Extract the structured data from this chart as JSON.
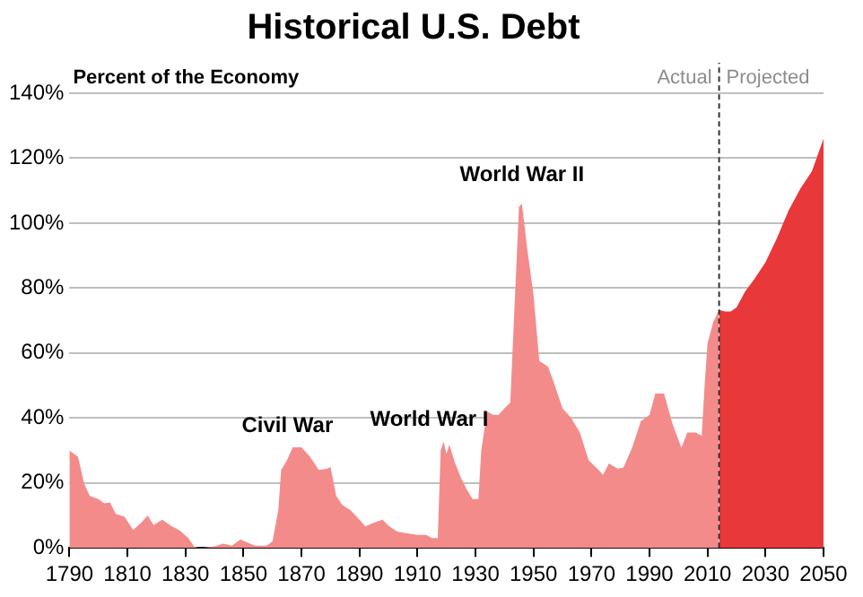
{
  "chart_data": {
    "type": "area",
    "title": "Historical U.S. Debt",
    "ylabel": "Percent of the Economy",
    "xlim": [
      1790,
      2050
    ],
    "xticks": [
      1790,
      1810,
      1830,
      1850,
      1870,
      1890,
      1910,
      1930,
      1950,
      1970,
      1990,
      2010,
      2030,
      2050
    ],
    "ylim": [
      0,
      140
    ],
    "yticks": [
      {
        "value": 0,
        "label": "0%"
      },
      {
        "value": 20,
        "label": "20%"
      },
      {
        "value": 40,
        "label": "40%"
      },
      {
        "value": 60,
        "label": "60%"
      },
      {
        "value": 80,
        "label": "80%"
      },
      {
        "value": 100,
        "label": "100%"
      },
      {
        "value": 120,
        "label": "120%"
      },
      {
        "value": 140,
        "label": "140%"
      }
    ],
    "grid": "y",
    "legend": false,
    "series": [
      {
        "color": "#f48b8b",
        "x": [
          1790,
          1793,
          1795,
          1797,
          1800,
          1802,
          1804,
          1806,
          1809,
          1812,
          1815,
          1817,
          1819,
          1822,
          1825,
          1828,
          1831,
          1833,
          1835,
          1840,
          1843,
          1846,
          1849,
          1851,
          1854,
          1858,
          1860,
          1862,
          1863,
          1865,
          1867,
          1870,
          1873,
          1876,
          1879,
          1880,
          1882,
          1884,
          1887,
          1890,
          1892,
          1895,
          1898,
          1900,
          1903,
          1907,
          1910,
          1913,
          1915,
          1917,
          1918,
          1919,
          1920,
          1921,
          1923,
          1925,
          1927,
          1929,
          1931,
          1932,
          1934,
          1936,
          1938,
          1940,
          1942,
          1943,
          1945,
          1946,
          1948,
          1950,
          1952,
          1955,
          1957,
          1960,
          1963,
          1966,
          1969,
          1972,
          1974,
          1976,
          1979,
          1981,
          1984,
          1987,
          1990,
          1992,
          1995,
          1998,
          2001,
          2003,
          2006,
          2008,
          2009,
          2010,
          2012,
          2014
        ],
        "values": [
          30,
          28,
          20,
          16,
          15,
          13.7,
          14,
          10.5,
          9.6,
          5.5,
          8,
          10,
          7,
          8.7,
          6.8,
          5.4,
          3,
          0.4,
          0,
          0.5,
          1.3,
          0.7,
          2.6,
          1.8,
          0.7,
          0.7,
          2,
          11.5,
          24,
          27,
          31,
          31,
          28,
          24,
          24.4,
          25,
          16,
          13.3,
          11.5,
          8.7,
          6.6,
          7.8,
          8.7,
          6.8,
          5,
          4.4,
          4,
          4,
          3,
          3,
          30,
          32.7,
          29,
          31.8,
          26,
          21.6,
          18,
          15,
          15,
          30,
          42,
          41,
          41,
          43,
          44.7,
          65,
          105,
          106,
          91,
          78,
          57.6,
          55.8,
          51,
          43,
          40,
          35.5,
          27,
          24.4,
          22.5,
          26,
          24.4,
          24.7,
          30.8,
          39,
          41,
          47.5,
          47.5,
          38,
          30.8,
          35.5,
          35.5,
          34.5,
          50,
          63,
          69.6,
          73.3
        ]
      },
      {
        "color": "#e8383a",
        "x": [
          2014,
          2016,
          2018,
          2020,
          2023,
          2026,
          2030,
          2034,
          2038,
          2042,
          2046,
          2050
        ],
        "values": [
          73.3,
          72.8,
          72.8,
          74,
          79,
          82.6,
          88,
          95.5,
          104,
          110.6,
          116,
          126
        ]
      }
    ],
    "ref_lines": [
      {
        "axis": "x",
        "value": 2014,
        "label": "Actual",
        "color": "#333333",
        "line_style": "dashed"
      }
    ],
    "annotations": [
      "Projected",
      {
        "text": "Civil War",
        "x": 1867,
        "y": 31
      },
      {
        "text": "World War I",
        "x": 1919,
        "y": 32.7
      },
      {
        "text": "World War II",
        "x": 1946,
        "y": 106
      }
    ]
  }
}
